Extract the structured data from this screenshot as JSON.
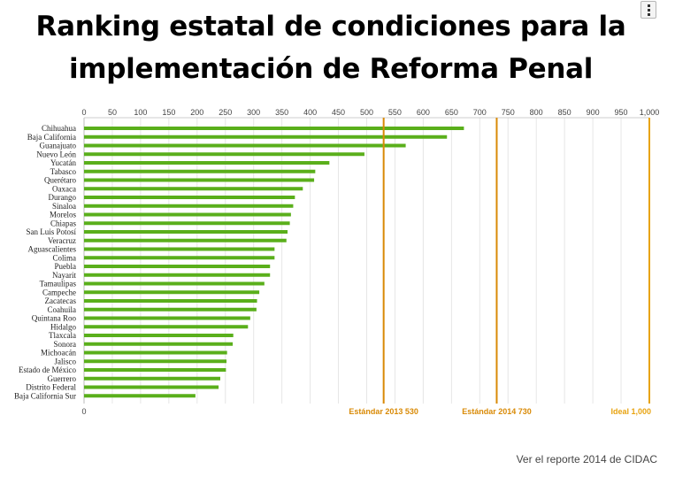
{
  "title_line1": "Ranking estatal de condiciones para la",
  "title_line2": "implementación de Reforma Penal",
  "menu_icon": "vertical-dots-icon",
  "footer_link": "Ver el reporte 2014 de CIDAC",
  "chart_data": {
    "type": "bar",
    "orientation": "horizontal",
    "xlim": [
      0,
      1000
    ],
    "x_ticks": [
      "0",
      "50",
      "100",
      "150",
      "200",
      "250",
      "300",
      "350",
      "400",
      "450",
      "500",
      "550",
      "600",
      "650",
      "700",
      "750",
      "800",
      "850",
      "900",
      "950",
      "1,000"
    ],
    "x_axis_bottom_label": "0",
    "grid": true,
    "bar_color": "#5aaf1b",
    "categories": [
      "Chihuahua",
      "Baja California",
      "Guanajuato",
      "Nuevo León",
      "Yucatán",
      "Tabasco",
      "Querétaro",
      "Oaxaca",
      "Durango",
      "Sinaloa",
      "Morelos",
      "Chiapas",
      "San Luis Potosí",
      "Veracruz",
      "Aguascalientes",
      "Colima",
      "Puebla",
      "Nayarit",
      "Tamaulipas",
      "Campeche",
      "Zacatecas",
      "Coahuila",
      "Quintana Roo",
      "Hidalgo",
      "Tlaxcala",
      "Sonora",
      "Michoacán",
      "Jalisco",
      "Estado de México",
      "Guerrero",
      "Distrito Federal",
      "Baja California Sur"
    ],
    "values": [
      672,
      642,
      569,
      496,
      434,
      409,
      407,
      387,
      373,
      370,
      366,
      364,
      360,
      358,
      337,
      337,
      329,
      329,
      319,
      310,
      306,
      305,
      294,
      290,
      264,
      263,
      253,
      252,
      251,
      241,
      238,
      197
    ],
    "reference_lines": [
      {
        "label": "Estándar 2013 530",
        "value": 530,
        "color": "#d98a06"
      },
      {
        "label": "Estándar 2014 730",
        "value": 730,
        "color": "#d98a06"
      },
      {
        "label": "Ideal 1,000",
        "value": 1000,
        "color": "#e8a310"
      }
    ]
  }
}
